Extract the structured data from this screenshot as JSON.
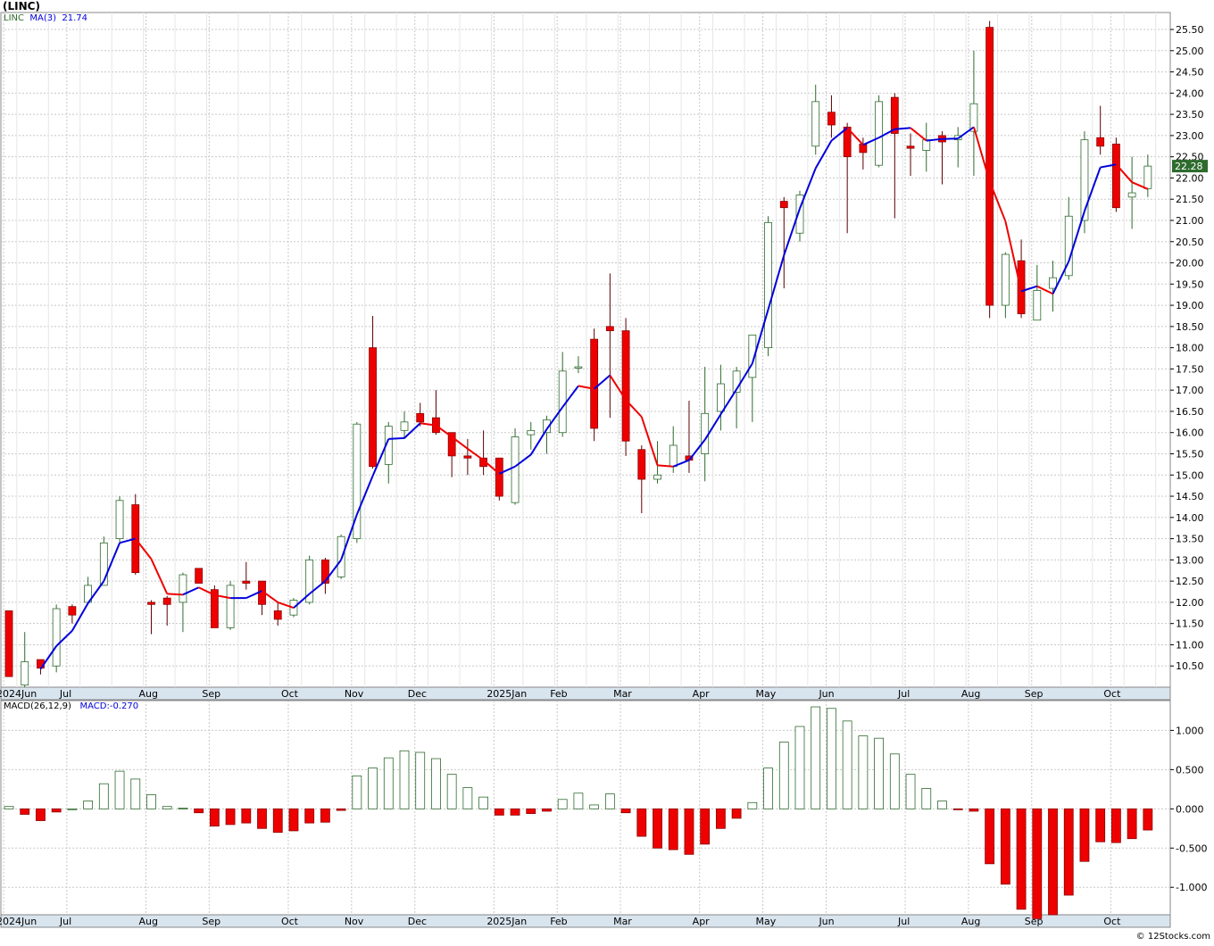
{
  "chart_title": "(LINC)",
  "price_legend": {
    "symbol": "LINC",
    "ma_label": "MA(3)",
    "ma_value": "21.74"
  },
  "macd_legend": {
    "label": "MACD(26,12,9)",
    "value_label": "MACD:-0.270"
  },
  "last_price_tag": "22.28",
  "credit": "© 12Stocks.com",
  "colors": {
    "up_candle_fill": "#ffffff",
    "up_candle_stroke": "#2e6b2e",
    "down_candle": "#ee0000",
    "ma_up": "#0000dd",
    "ma_down": "#ee0000",
    "grid": "#c8c8c8",
    "axis_band": "#d8e4ee",
    "macd_pos": "#2e6b2e",
    "macd_neg": "#ee0000"
  },
  "x_axis_labels": [
    "2024Jun",
    "Jul",
    "Aug",
    "Sep",
    "Oct",
    "Nov",
    "Dec",
    "2025Jan",
    "Feb",
    "Mar",
    "Apr",
    "May",
    "Jun",
    "Jul",
    "Aug",
    "Sep",
    "Oct"
  ],
  "chart_data": [
    {
      "type": "candlestick",
      "title": "(LINC)",
      "interval": "weekly",
      "ylim": [
        10.0,
        25.9
      ],
      "y_ticks": [
        "10.50",
        "11.00",
        "11.50",
        "12.00",
        "12.50",
        "13.00",
        "13.50",
        "14.00",
        "14.50",
        "15.00",
        "15.50",
        "16.00",
        "16.50",
        "17.00",
        "17.50",
        "18.00",
        "18.50",
        "19.00",
        "19.50",
        "20.00",
        "20.50",
        "21.00",
        "21.50",
        "22.00",
        "22.50",
        "23.00",
        "23.50",
        "24.00",
        "24.50",
        "25.00",
        "25.50"
      ],
      "x_labels": [
        "2024Jun",
        "Jul",
        "Aug",
        "Sep",
        "Oct",
        "Nov",
        "Dec",
        "2025Jan",
        "Feb",
        "Mar",
        "Apr",
        "May",
        "Jun",
        "Jul",
        "Aug",
        "Sep",
        "Oct"
      ],
      "x_label_bar_index": [
        0,
        4,
        9,
        13,
        18,
        22,
        26,
        31,
        35,
        39,
        44,
        48,
        52,
        57,
        61,
        65,
        70
      ],
      "candles": [
        {
          "o": 11.8,
          "h": 11.8,
          "l": 10.25,
          "c": 10.25
        },
        {
          "o": 10.05,
          "h": 11.3,
          "l": 10.0,
          "c": 10.6
        },
        {
          "o": 10.65,
          "h": 10.65,
          "l": 10.3,
          "c": 10.45
        },
        {
          "o": 10.5,
          "h": 11.95,
          "l": 10.35,
          "c": 11.85
        },
        {
          "o": 11.9,
          "h": 11.95,
          "l": 11.5,
          "c": 11.7
        },
        {
          "o": 12.0,
          "h": 12.6,
          "l": 12.0,
          "c": 12.4
        },
        {
          "o": 12.4,
          "h": 13.55,
          "l": 12.4,
          "c": 13.4
        },
        {
          "o": 13.5,
          "h": 14.5,
          "l": 13.4,
          "c": 14.4
        },
        {
          "o": 14.3,
          "h": 14.55,
          "l": 12.65,
          "c": 12.7
        },
        {
          "o": 12.0,
          "h": 12.05,
          "l": 11.25,
          "c": 11.95
        },
        {
          "o": 12.1,
          "h": 12.15,
          "l": 11.45,
          "c": 11.95
        },
        {
          "o": 12.0,
          "h": 12.7,
          "l": 11.3,
          "c": 12.65
        },
        {
          "o": 12.8,
          "h": 12.8,
          "l": 12.45,
          "c": 12.45
        },
        {
          "o": 12.3,
          "h": 12.4,
          "l": 11.4,
          "c": 11.4
        },
        {
          "o": 11.4,
          "h": 12.5,
          "l": 11.35,
          "c": 12.4
        },
        {
          "o": 12.5,
          "h": 12.95,
          "l": 12.3,
          "c": 12.45
        },
        {
          "o": 12.5,
          "h": 12.5,
          "l": 11.7,
          "c": 11.95
        },
        {
          "o": 11.8,
          "h": 12.0,
          "l": 11.45,
          "c": 11.6
        },
        {
          "o": 11.7,
          "h": 12.1,
          "l": 11.65,
          "c": 12.05
        },
        {
          "o": 12.0,
          "h": 13.1,
          "l": 11.95,
          "c": 13.0
        },
        {
          "o": 13.0,
          "h": 13.05,
          "l": 12.2,
          "c": 12.45
        },
        {
          "o": 12.6,
          "h": 13.6,
          "l": 12.55,
          "c": 13.55
        },
        {
          "o": 13.5,
          "h": 16.25,
          "l": 13.4,
          "c": 16.2
        },
        {
          "o": 18.0,
          "h": 18.75,
          "l": 15.15,
          "c": 15.2
        },
        {
          "o": 15.25,
          "h": 16.25,
          "l": 14.8,
          "c": 16.15
        },
        {
          "o": 16.05,
          "h": 16.5,
          "l": 15.85,
          "c": 16.25
        },
        {
          "o": 16.45,
          "h": 16.7,
          "l": 16.15,
          "c": 16.25
        },
        {
          "o": 16.35,
          "h": 17.0,
          "l": 15.95,
          "c": 16.0
        },
        {
          "o": 16.0,
          "h": 16.0,
          "l": 14.95,
          "c": 15.45
        },
        {
          "o": 15.45,
          "h": 15.85,
          "l": 15.0,
          "c": 15.4
        },
        {
          "o": 15.4,
          "h": 16.05,
          "l": 15.0,
          "c": 15.2
        },
        {
          "o": 15.4,
          "h": 15.4,
          "l": 14.4,
          "c": 14.5
        },
        {
          "o": 14.35,
          "h": 16.1,
          "l": 14.3,
          "c": 15.9
        },
        {
          "o": 15.95,
          "h": 16.25,
          "l": 15.6,
          "c": 16.05
        },
        {
          "o": 16.0,
          "h": 16.4,
          "l": 15.5,
          "c": 16.3
        },
        {
          "o": 16.0,
          "h": 17.9,
          "l": 15.9,
          "c": 17.45
        },
        {
          "o": 17.55,
          "h": 17.8,
          "l": 17.4,
          "c": 17.55
        },
        {
          "o": 18.2,
          "h": 18.45,
          "l": 15.8,
          "c": 16.1
        },
        {
          "o": 18.5,
          "h": 19.75,
          "l": 16.35,
          "c": 18.4
        },
        {
          "o": 18.4,
          "h": 18.7,
          "l": 15.45,
          "c": 15.8
        },
        {
          "o": 15.6,
          "h": 15.7,
          "l": 14.1,
          "c": 14.9
        },
        {
          "o": 14.9,
          "h": 15.8,
          "l": 14.8,
          "c": 15.0
        },
        {
          "o": 15.2,
          "h": 16.15,
          "l": 15.05,
          "c": 15.7
        },
        {
          "o": 15.45,
          "h": 16.75,
          "l": 15.05,
          "c": 15.35
        },
        {
          "o": 15.5,
          "h": 17.55,
          "l": 14.85,
          "c": 16.45
        },
        {
          "o": 16.5,
          "h": 17.6,
          "l": 16.05,
          "c": 17.15
        },
        {
          "o": 16.95,
          "h": 17.55,
          "l": 16.1,
          "c": 17.45
        },
        {
          "o": 17.3,
          "h": 18.25,
          "l": 16.25,
          "c": 18.3
        },
        {
          "o": 18.0,
          "h": 21.1,
          "l": 17.8,
          "c": 20.95
        },
        {
          "o": 21.45,
          "h": 21.55,
          "l": 19.4,
          "c": 21.3
        },
        {
          "o": 20.7,
          "h": 21.7,
          "l": 20.5,
          "c": 21.6
        },
        {
          "o": 22.75,
          "h": 24.2,
          "l": 22.55,
          "c": 23.8
        },
        {
          "o": 23.55,
          "h": 23.95,
          "l": 22.95,
          "c": 23.25
        },
        {
          "o": 23.2,
          "h": 23.3,
          "l": 20.7,
          "c": 22.5
        },
        {
          "o": 22.8,
          "h": 22.95,
          "l": 22.2,
          "c": 22.6
        },
        {
          "o": 22.3,
          "h": 23.95,
          "l": 22.25,
          "c": 23.8
        },
        {
          "o": 23.9,
          "h": 24.0,
          "l": 21.05,
          "c": 23.05
        },
        {
          "o": 22.75,
          "h": 23.05,
          "l": 22.05,
          "c": 22.7
        },
        {
          "o": 22.65,
          "h": 23.3,
          "l": 22.15,
          "c": 22.9
        },
        {
          "o": 23.0,
          "h": 23.1,
          "l": 21.85,
          "c": 22.85
        },
        {
          "o": 22.9,
          "h": 23.2,
          "l": 22.25,
          "c": 23.0
        },
        {
          "o": 23.1,
          "h": 25.0,
          "l": 22.05,
          "c": 23.75
        },
        {
          "o": 25.55,
          "h": 25.7,
          "l": 18.7,
          "c": 19.0
        },
        {
          "o": 19.0,
          "h": 20.25,
          "l": 18.7,
          "c": 20.2
        },
        {
          "o": 20.05,
          "h": 20.55,
          "l": 18.7,
          "c": 18.8
        },
        {
          "o": 18.65,
          "h": 19.95,
          "l": 18.65,
          "c": 19.35
        },
        {
          "o": 19.4,
          "h": 20.05,
          "l": 18.85,
          "c": 19.65
        },
        {
          "o": 19.7,
          "h": 21.55,
          "l": 19.6,
          "c": 21.1
        },
        {
          "o": 21.0,
          "h": 23.1,
          "l": 20.7,
          "c": 22.9
        },
        {
          "o": 22.95,
          "h": 23.7,
          "l": 22.55,
          "c": 22.75
        },
        {
          "o": 22.8,
          "h": 22.95,
          "l": 21.2,
          "c": 21.3
        },
        {
          "o": 21.55,
          "h": 22.5,
          "l": 20.8,
          "c": 21.65
        },
        {
          "o": 21.75,
          "h": 22.55,
          "l": 21.55,
          "c": 22.28
        }
      ],
      "ma3": [
        null,
        null,
        10.43,
        10.97,
        11.33,
        11.98,
        12.5,
        13.4,
        13.5,
        13.02,
        12.2,
        12.18,
        12.35,
        12.17,
        12.1,
        12.1,
        12.27,
        12.0,
        11.87,
        12.2,
        12.5,
        13.0,
        14.07,
        14.98,
        15.85,
        15.87,
        16.22,
        16.17,
        15.9,
        15.62,
        15.35,
        15.03,
        15.2,
        15.48,
        16.08,
        16.6,
        17.1,
        17.03,
        17.35,
        16.77,
        16.37,
        15.23,
        15.2,
        15.35,
        15.83,
        16.43,
        17.02,
        17.63,
        18.9,
        20.18,
        21.28,
        22.23,
        22.88,
        23.18,
        22.78,
        22.95,
        23.15,
        23.18,
        22.88,
        22.92,
        22.93,
        23.2,
        21.92,
        20.98,
        19.33,
        19.45,
        19.27,
        20.03,
        21.22,
        22.25,
        22.32,
        21.9,
        21.74
      ]
    },
    {
      "type": "bar",
      "title": "MACD(26,12,9)",
      "ylim": [
        -1.35,
        1.38
      ],
      "y_ticks": [
        "1.000",
        "0.500",
        "0.000",
        "-0.500",
        "-1.000"
      ],
      "values": [
        0.03,
        -0.07,
        -0.15,
        -0.04,
        0.0,
        0.1,
        0.32,
        0.48,
        0.38,
        0.18,
        0.03,
        0.01,
        -0.05,
        -0.22,
        -0.2,
        -0.18,
        -0.25,
        -0.3,
        -0.28,
        -0.18,
        -0.17,
        -0.02,
        0.42,
        0.52,
        0.65,
        0.74,
        0.72,
        0.64,
        0.44,
        0.27,
        0.15,
        -0.08,
        -0.08,
        -0.06,
        -0.03,
        0.12,
        0.2,
        0.05,
        0.19,
        -0.05,
        -0.35,
        -0.5,
        -0.52,
        -0.58,
        -0.45,
        -0.25,
        -0.12,
        0.08,
        0.52,
        0.85,
        1.05,
        1.3,
        1.28,
        1.12,
        0.93,
        0.9,
        0.7,
        0.44,
        0.26,
        0.1,
        -0.01,
        -0.03,
        -0.7,
        -0.96,
        -1.28,
        -1.4,
        -1.35,
        -1.1,
        -0.67,
        -0.42,
        -0.43,
        -0.38,
        -0.27
      ],
      "current": -0.27
    }
  ]
}
